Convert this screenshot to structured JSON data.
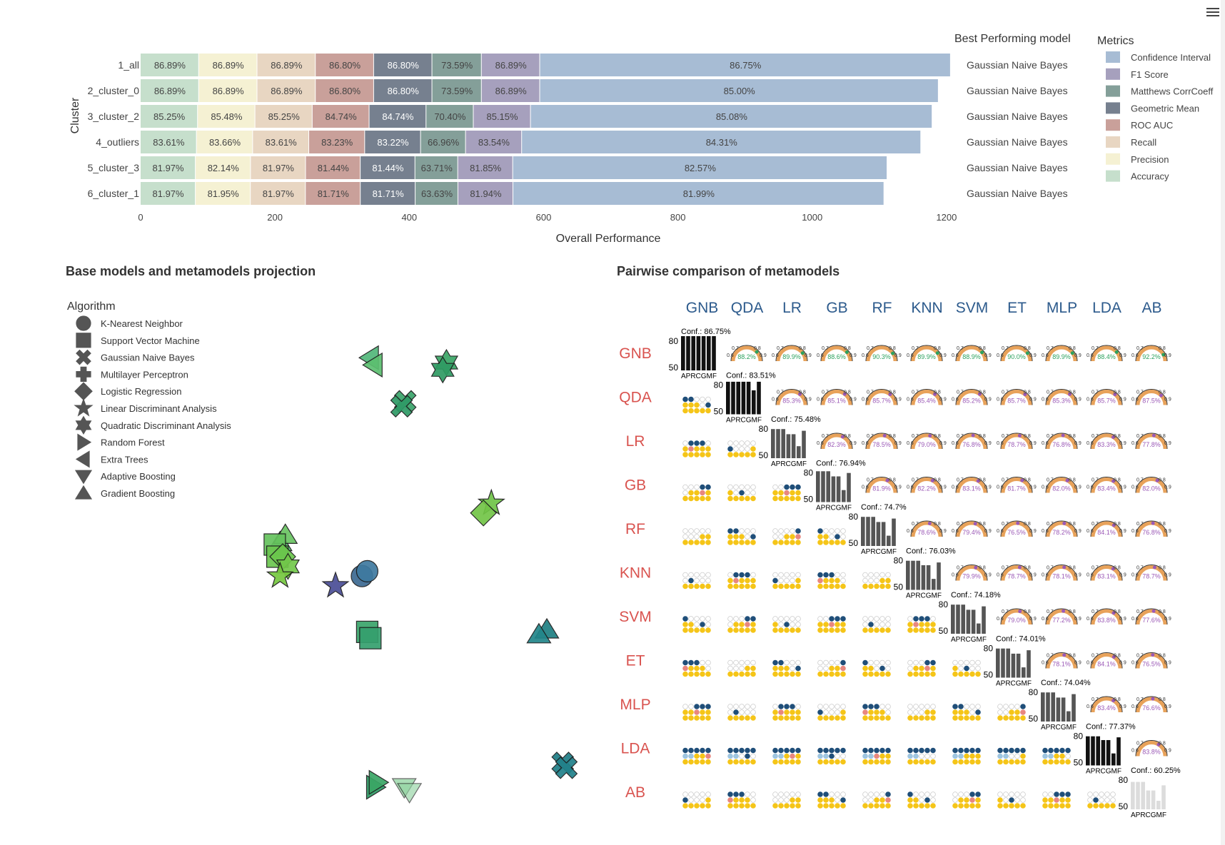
{
  "top_chart": {
    "ylabel": "Cluster",
    "xlabel": "Overall Performance",
    "best_title": "Best Performing model",
    "legend_title": "Metrics",
    "x_ticks": [
      0,
      200,
      400,
      600,
      800,
      1000,
      1200
    ],
    "legend": [
      {
        "name": "Confidence Interval",
        "color": "#a7bcd4"
      },
      {
        "name": "F1 Score",
        "color": "#a6a0bd"
      },
      {
        "name": "Matthews CorrCoeff",
        "color": "#849f99"
      },
      {
        "name": "Geometric Mean",
        "color": "#76808f"
      },
      {
        "name": "ROC AUC",
        "color": "#c9a09a"
      },
      {
        "name": "Recall",
        "color": "#e8d6c2"
      },
      {
        "name": "Precision",
        "color": "#f5f1d3"
      },
      {
        "name": "Accuracy",
        "color": "#c6dfcc"
      }
    ]
  },
  "chart_data": [
    {
      "type": "bar",
      "orientation": "horizontal-stacked",
      "xlabel": "Overall Performance",
      "ylabel": "Cluster",
      "xlim": [
        0,
        1300
      ],
      "categories": [
        "1_all",
        "2_cluster_0",
        "3_cluster_2",
        "4_outliers",
        "5_cluster_3",
        "6_cluster_1"
      ],
      "best_model": [
        "Gaussian Naive Bayes",
        "Gaussian Naive Bayes",
        "Gaussian Naive Bayes",
        "Gaussian Naive Bayes",
        "Gaussian Naive Bayes",
        "Gaussian Naive Bayes"
      ],
      "series": [
        {
          "name": "Accuracy",
          "color": "#c6dfcc",
          "values": [
            86.89,
            86.89,
            85.25,
            83.61,
            81.97,
            81.97
          ],
          "labels": [
            "86.89%",
            "86.89%",
            "85.25%",
            "83.61%",
            "81.97%",
            "81.97%"
          ]
        },
        {
          "name": "Precision",
          "color": "#f5f1d3",
          "values": [
            86.89,
            86.89,
            85.48,
            83.66,
            82.14,
            81.95
          ],
          "labels": [
            "86.89%",
            "86.89%",
            "85.48%",
            "83.66%",
            "82.14%",
            "81.95%"
          ]
        },
        {
          "name": "Recall",
          "color": "#e8d6c2",
          "values": [
            86.89,
            86.89,
            85.25,
            83.61,
            81.97,
            81.97
          ],
          "labels": [
            "86.89%",
            "86.89%",
            "85.25%",
            "83.61%",
            "81.97%",
            "81.97%"
          ]
        },
        {
          "name": "ROC AUC",
          "color": "#c9a09a",
          "values": [
            86.8,
            86.8,
            84.74,
            83.23,
            81.44,
            81.71
          ],
          "labels": [
            "86.80%",
            "86.80%",
            "84.74%",
            "83.23%",
            "81.44%",
            "81.71%"
          ]
        },
        {
          "name": "Geometric Mean",
          "color": "#76808f",
          "values": [
            86.8,
            86.8,
            84.74,
            83.22,
            81.44,
            81.71
          ],
          "labels": [
            "86.80%",
            "86.80%",
            "84.74%",
            "83.22%",
            "81.44%",
            "81.71%"
          ]
        },
        {
          "name": "Matthews CorrCoeff",
          "color": "#849f99",
          "values": [
            73.59,
            73.59,
            70.4,
            66.96,
            63.71,
            63.63
          ],
          "labels": [
            "73.59%",
            "73.59%",
            "70.40%",
            "66.96%",
            "63.71%",
            "63.63%"
          ]
        },
        {
          "name": "F1 Score",
          "color": "#a6a0bd",
          "values": [
            86.89,
            86.89,
            85.15,
            83.54,
            81.85,
            81.94
          ],
          "labels": [
            "86.89%",
            "86.89%",
            "85.15%",
            "83.54%",
            "81.85%",
            "81.94%"
          ]
        },
        {
          "name": "Confidence Interval",
          "color": "#a7bcd4",
          "values": [
            611.6,
            593.5,
            598.0,
            594.3,
            557.4,
            552.4
          ],
          "labels": [
            "86.75%",
            "85.00%",
            "85.08%",
            "84.31%",
            "82.57%",
            "81.99%"
          ]
        }
      ]
    },
    {
      "type": "scatter",
      "title": "Base models and metamodels projection",
      "legend_title": "Algorithm",
      "legend": [
        "K-Nearest Neighbor",
        "Support Vector Machine",
        "Gaussian Naive Bayes",
        "Multilayer Perceptron",
        "Logistic Regression",
        "Linear Discriminant Analysis",
        "Quadratic Discriminant Analysis",
        "Random Forest",
        "Extra Trees",
        "Adaptive Boosting",
        "Gradient Boosting"
      ],
      "points": [
        {
          "shape": "triangle-left",
          "x": 0.565,
          "y": 0.09,
          "color": "#52b77a"
        },
        {
          "shape": "triangle-left",
          "x": 0.572,
          "y": 0.105,
          "color": "#5cc070"
        },
        {
          "shape": "hexagram",
          "x": 0.71,
          "y": 0.1,
          "color": "#3aa566"
        },
        {
          "shape": "hexagram",
          "x": 0.703,
          "y": 0.115,
          "color": "#2f9b63"
        },
        {
          "shape": "cross",
          "x": 0.632,
          "y": 0.18,
          "color": "#3aa46b"
        },
        {
          "shape": "cross",
          "x": 0.625,
          "y": 0.19,
          "color": "#2e9a66"
        },
        {
          "shape": "star",
          "x": 0.795,
          "y": 0.39,
          "color": "#6fc448"
        },
        {
          "shape": "diamond",
          "x": 0.78,
          "y": 0.41,
          "color": "#72c547"
        },
        {
          "shape": "triangle-up",
          "x": 0.395,
          "y": 0.47,
          "color": "#52ba6a"
        },
        {
          "shape": "triangle-up",
          "x": 0.405,
          "y": 0.455,
          "color": "#6ac462"
        },
        {
          "shape": "square",
          "x": 0.385,
          "y": 0.475,
          "color": "#66c35e"
        },
        {
          "shape": "square",
          "x": 0.39,
          "y": 0.5,
          "color": "#6cc650"
        },
        {
          "shape": "diamond",
          "x": 0.4,
          "y": 0.5,
          "color": "#6ac64c"
        },
        {
          "shape": "hexagram",
          "x": 0.41,
          "y": 0.52,
          "color": "#72c84a"
        },
        {
          "shape": "star",
          "x": 0.395,
          "y": 0.54,
          "color": "#76c83f"
        },
        {
          "shape": "star",
          "x": 0.5,
          "y": 0.56,
          "color": "#4a4e96"
        },
        {
          "shape": "circle",
          "x": 0.55,
          "y": 0.54,
          "color": "#3c6a92"
        },
        {
          "shape": "circle",
          "x": 0.56,
          "y": 0.53,
          "color": "#3f7aa0"
        },
        {
          "shape": "square",
          "x": 0.56,
          "y": 0.655,
          "color": "#3aa46b"
        },
        {
          "shape": "square",
          "x": 0.566,
          "y": 0.668,
          "color": "#35a06e"
        },
        {
          "shape": "triangle-up",
          "x": 0.9,
          "y": 0.65,
          "color": "#1f7f83"
        },
        {
          "shape": "triangle-up",
          "x": 0.885,
          "y": 0.66,
          "color": "#22868a"
        },
        {
          "shape": "cross",
          "x": 0.93,
          "y": 0.925,
          "color": "#1e7d86"
        },
        {
          "shape": "cross",
          "x": 0.937,
          "y": 0.935,
          "color": "#21818a"
        },
        {
          "shape": "triangle-right",
          "x": 0.575,
          "y": 0.975,
          "color": "#2e9c66"
        },
        {
          "shape": "triangle-right",
          "x": 0.58,
          "y": 0.965,
          "color": "#3aa665"
        },
        {
          "shape": "triangle-down",
          "x": 0.63,
          "y": 0.975,
          "color": "#7fcd92"
        },
        {
          "shape": "triangle-down",
          "x": 0.64,
          "y": 0.985,
          "color": "#93d4a2"
        }
      ]
    },
    {
      "type": "table",
      "title": "Pairwise comparison of metamodels",
      "models": [
        "GNB",
        "QDA",
        "LR",
        "GB",
        "RF",
        "KNN",
        "SVM",
        "ET",
        "MLP",
        "LDA",
        "AB"
      ],
      "confidence": [
        "86.75%",
        "83.51%",
        "75.48%",
        "76.94%",
        "74.7%",
        "76.03%",
        "74.18%",
        "74.01%",
        "74.04%",
        "77.37%",
        "60.25%"
      ],
      "bar_axis_ticks": [
        "80",
        "50"
      ],
      "bar_metric_letters": "APRCGMF",
      "gauge_ticks": [
        "0.6",
        "0.7",
        "0.8",
        "0.9"
      ],
      "upper_values": [
        [
          "88.2%",
          "89.9%",
          "88.6%",
          "90.3%",
          "89.9%",
          "88.9%",
          "90.0%",
          "89.9%",
          "88.4%",
          "92.2%"
        ],
        [
          "85.3%",
          "85.1%",
          "85.7%",
          "85.4%",
          "85.2%",
          "85.7%",
          "85.3%",
          "85.7%",
          "87.5%"
        ],
        [
          "82.3%",
          "78.5%",
          "79.0%",
          "76.8%",
          "78.7%",
          "76.8%",
          "83.3%",
          "77.8%"
        ],
        [
          "81.9%",
          "82.2%",
          "83.1%",
          "81.7%",
          "82.0%",
          "83.4%",
          "82.0%"
        ],
        [
          "78.6%",
          "79.4%",
          "76.5%",
          "78.2%",
          "84.1%",
          "76.8%"
        ],
        [
          "79.9%",
          "78.7%",
          "78.1%",
          "83.1%",
          "78.7%"
        ],
        [
          "79.0%",
          "77.2%",
          "83.8%",
          "77.6%"
        ],
        [
          "78.1%",
          "84.1%",
          "76.5%"
        ],
        [
          "83.4%",
          "76.6%"
        ],
        [
          "83.8%"
        ],
        []
      ]
    }
  ],
  "scatter": {
    "title": "Base models and metamodels projection",
    "legend_title": "Algorithm",
    "legend": [
      {
        "name": "K-Nearest Neighbor",
        "shape": "circle"
      },
      {
        "name": "Support Vector Machine",
        "shape": "square"
      },
      {
        "name": "Gaussian Naive Bayes",
        "shape": "cross"
      },
      {
        "name": "Multilayer Perceptron",
        "shape": "plus"
      },
      {
        "name": "Logistic Regression",
        "shape": "diamond"
      },
      {
        "name": "Linear Discriminant Analysis",
        "shape": "star"
      },
      {
        "name": "Quadratic Discriminant Analysis",
        "shape": "hexagram"
      },
      {
        "name": "Random Forest",
        "shape": "triangle-right"
      },
      {
        "name": "Extra Trees",
        "shape": "triangle-left"
      },
      {
        "name": "Adaptive Boosting",
        "shape": "triangle-down"
      },
      {
        "name": "Gradient Boosting",
        "shape": "triangle-up"
      }
    ]
  },
  "pairwise": {
    "title": "Pairwise comparison of metamodels"
  },
  "colors": {
    "row_label": "#d9534f",
    "col_label": "#2c5a8c",
    "gauge_arc": "#e8a25a",
    "gauge_green": "#2ca25f",
    "gauge_purple": "#9b59b6",
    "dot_yellow": "#f5c518",
    "dot_blue": "#1f4e79"
  }
}
